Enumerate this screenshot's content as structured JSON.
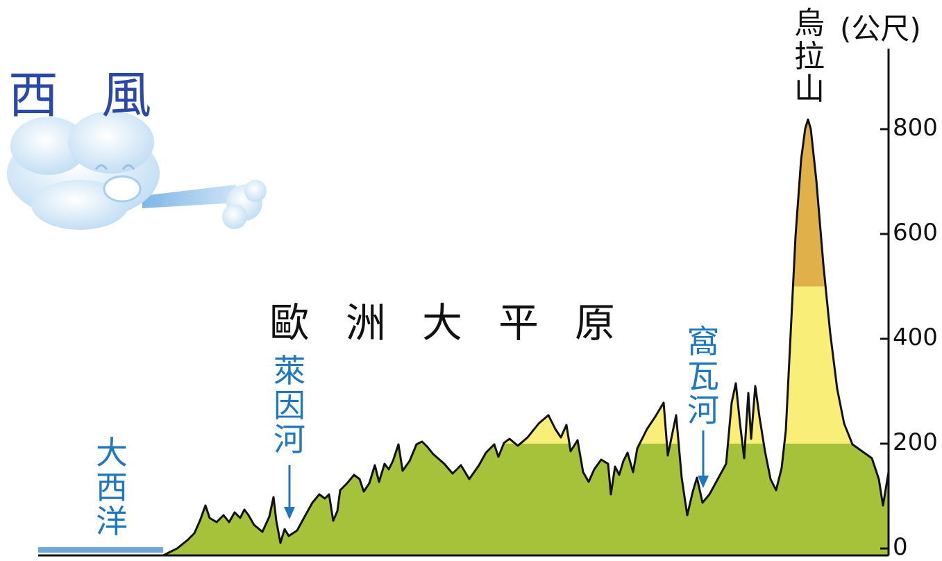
{
  "title": "西風",
  "plain_label": "歐洲大平原",
  "ocean_label": "大西洋",
  "river_rhine": "萊因河",
  "river_volga": "窩瓦河",
  "mountain_label": "烏拉山",
  "axis": {
    "unit": "(公尺)",
    "ticks": [
      {
        "value": 0,
        "label": "0"
      },
      {
        "value": 200,
        "label": "200"
      },
      {
        "value": 400,
        "label": "400"
      },
      {
        "value": 600,
        "label": "600"
      },
      {
        "value": 800,
        "label": "800"
      }
    ]
  },
  "colors": {
    "title": "#2a49a6",
    "river": "#1f77bf",
    "low": "#a6c23a",
    "mid": "#f8ee78",
    "high": "#e0b04a",
    "ocean": "#6fa8dc"
  }
}
